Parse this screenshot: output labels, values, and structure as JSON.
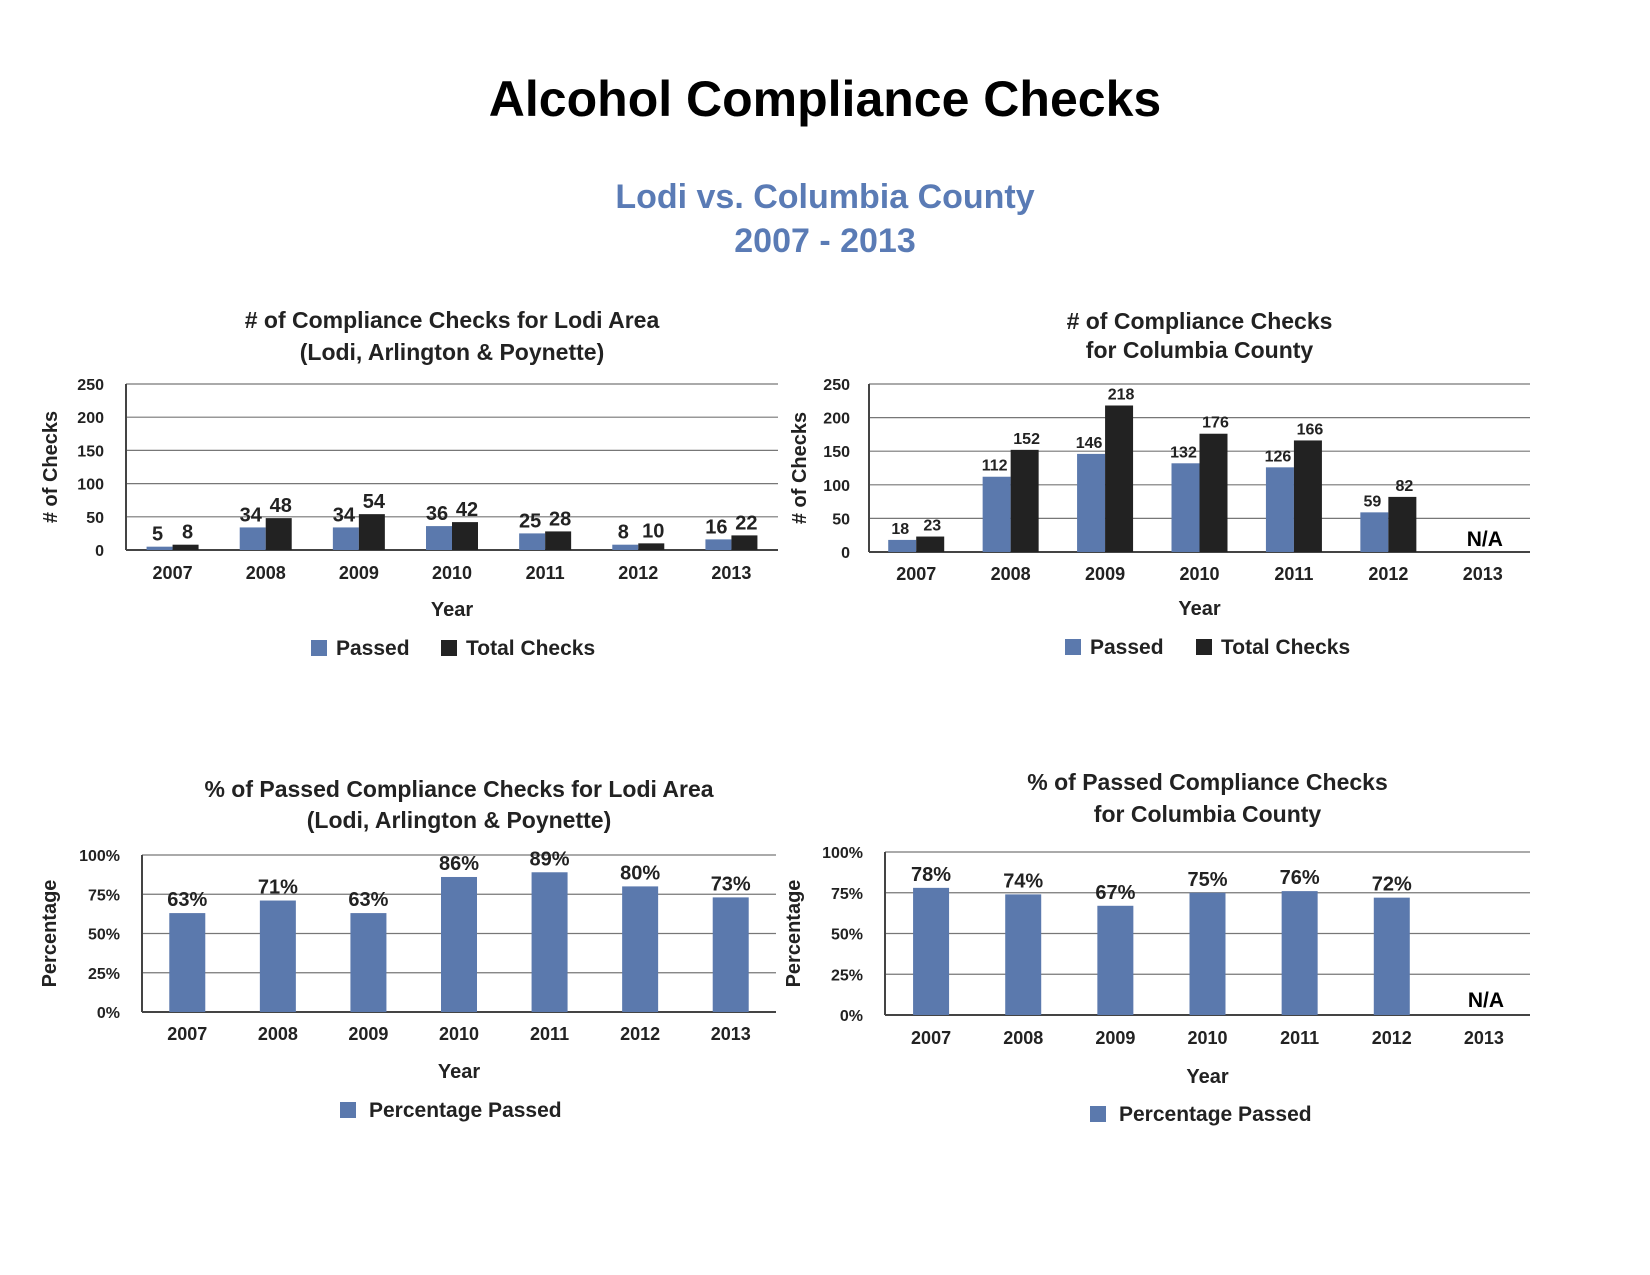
{
  "page": {
    "title": "Alcohol Compliance Checks",
    "subtitle_line1": "Lodi vs. Columbia County",
    "subtitle_line2": "2007 - 2013"
  },
  "colors": {
    "passed": "#5b79ad",
    "total": "#222222",
    "grid": "#777777",
    "subtitle": "#5a7bb5"
  },
  "chart_data": [
    {
      "id": "lodi-checks",
      "type": "bar",
      "title": [
        "# of Compliance Checks for Lodi Area",
        "(Lodi, Arlington & Poynette)"
      ],
      "xlabel": "Year",
      "ylabel": "# of Checks",
      "categories": [
        "2007",
        "2008",
        "2009",
        "2010",
        "2011",
        "2012",
        "2013"
      ],
      "series": [
        {
          "name": "Passed",
          "values": [
            5,
            34,
            34,
            36,
            25,
            8,
            16
          ]
        },
        {
          "name": "Total Checks",
          "values": [
            8,
            48,
            54,
            42,
            28,
            10,
            22
          ]
        }
      ],
      "yticks": [
        "0",
        "50",
        "100",
        "150",
        "200",
        "250"
      ],
      "ylim": [
        0,
        250
      ],
      "legend": [
        "Passed",
        "Total Checks"
      ],
      "annotation": null
    },
    {
      "id": "columbia-checks",
      "type": "bar",
      "title": [
        "# of Compliance Checks",
        "for Columbia County"
      ],
      "xlabel": "Year",
      "ylabel": "# of Checks",
      "categories": [
        "2007",
        "2008",
        "2009",
        "2010",
        "2011",
        "2012",
        "2013"
      ],
      "series": [
        {
          "name": "Passed",
          "values": [
            18,
            112,
            146,
            132,
            126,
            59,
            null
          ]
        },
        {
          "name": "Total Checks",
          "values": [
            23,
            152,
            218,
            176,
            166,
            82,
            null
          ]
        }
      ],
      "yticks": [
        "0",
        "50",
        "100",
        "150",
        "200",
        "250"
      ],
      "ylim": [
        0,
        250
      ],
      "legend": [
        "Passed",
        "Total Checks"
      ],
      "annotation": "N/A"
    },
    {
      "id": "lodi-percent",
      "type": "bar",
      "title": [
        "% of Passed Compliance Checks for Lodi Area",
        "(Lodi, Arlington & Poynette)"
      ],
      "xlabel": "Year",
      "ylabel": "Percentage",
      "categories": [
        "2007",
        "2008",
        "2009",
        "2010",
        "2011",
        "2012",
        "2013"
      ],
      "series": [
        {
          "name": "Percentage Passed",
          "values": [
            63,
            71,
            63,
            86,
            89,
            80,
            73
          ]
        }
      ],
      "yticks": [
        "0%",
        "25%",
        "50%",
        "75%",
        "100%"
      ],
      "ylim": [
        0,
        100
      ],
      "legend": [
        "Percentage Passed"
      ],
      "annotation": null
    },
    {
      "id": "columbia-percent",
      "type": "bar",
      "title": [
        "% of Passed Compliance Checks",
        "for Columbia County"
      ],
      "xlabel": "Year",
      "ylabel": "Percentage",
      "categories": [
        "2007",
        "2008",
        "2009",
        "2010",
        "2011",
        "2012",
        "2013"
      ],
      "series": [
        {
          "name": "Percentage Passed",
          "values": [
            78,
            74,
            67,
            75,
            76,
            72,
            null
          ]
        }
      ],
      "yticks": [
        "0%",
        "25%",
        "50%",
        "75%",
        "100%"
      ],
      "ylim": [
        0,
        100
      ],
      "legend": [
        "Percentage Passed"
      ],
      "annotation": "N/A"
    }
  ]
}
